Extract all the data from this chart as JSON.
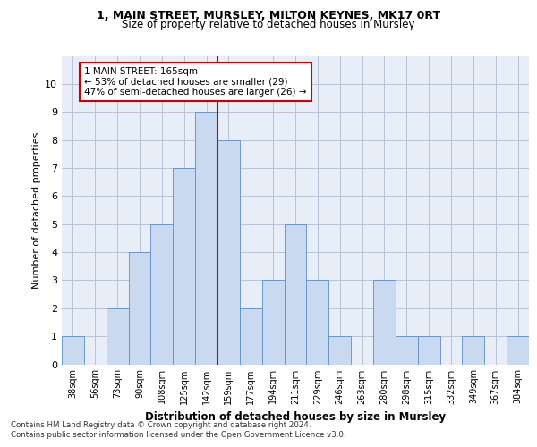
{
  "title1": "1, MAIN STREET, MURSLEY, MILTON KEYNES, MK17 0RT",
  "title2": "Size of property relative to detached houses in Mursley",
  "xlabel": "Distribution of detached houses by size in Mursley",
  "ylabel": "Number of detached properties",
  "bar_labels": [
    "38sqm",
    "56sqm",
    "73sqm",
    "90sqm",
    "108sqm",
    "125sqm",
    "142sqm",
    "159sqm",
    "177sqm",
    "194sqm",
    "211sqm",
    "229sqm",
    "246sqm",
    "263sqm",
    "280sqm",
    "298sqm",
    "315sqm",
    "332sqm",
    "349sqm",
    "367sqm",
    "384sqm"
  ],
  "bar_values": [
    1,
    0,
    2,
    4,
    5,
    7,
    9,
    8,
    2,
    3,
    5,
    3,
    1,
    0,
    3,
    1,
    1,
    0,
    1,
    0,
    1
  ],
  "bar_color": "#c9d9f0",
  "bar_edgecolor": "#5b8fc9",
  "vline_x_idx": 7,
  "vline_color": "#cc0000",
  "annotation_text": "1 MAIN STREET: 165sqm\n← 53% of detached houses are smaller (29)\n47% of semi-detached houses are larger (26) →",
  "annotation_box_facecolor": "#ffffff",
  "annotation_box_edgecolor": "#cc0000",
  "ylim": [
    0,
    11
  ],
  "yticks": [
    0,
    1,
    2,
    3,
    4,
    5,
    6,
    7,
    8,
    9,
    10
  ],
  "footer1": "Contains HM Land Registry data © Crown copyright and database right 2024.",
  "footer2": "Contains public sector information licensed under the Open Government Licence v3.0.",
  "fig_facecolor": "#ffffff",
  "plot_facecolor": "#e8eef8"
}
